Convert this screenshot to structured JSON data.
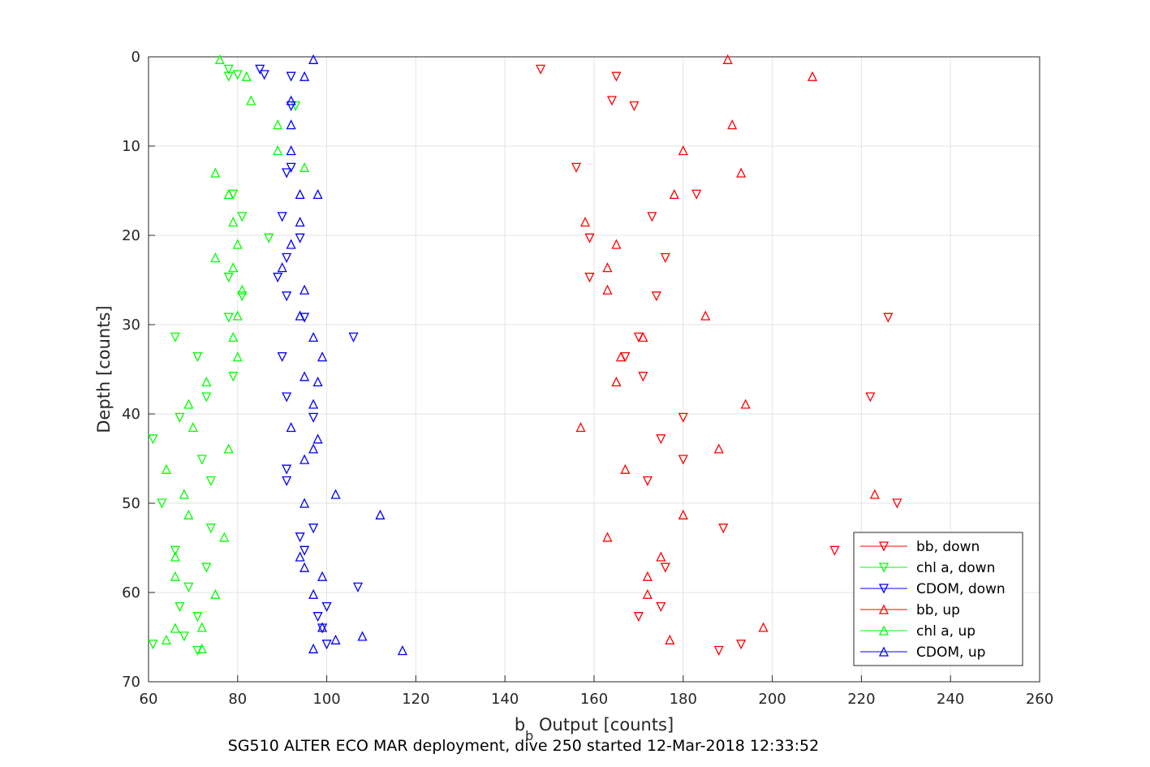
{
  "chart_data": {
    "type": "scatter",
    "xlabel_main": "b",
    "xlabel_sub": "b",
    "xlabel_rest": " Output [counts]",
    "ylabel": "Depth [counts]",
    "caption": "SG510 ALTER ECO MAR deployment, dive 250 started 12-Mar-2018 12:33:52",
    "xlim": [
      60,
      260
    ],
    "ylim": [
      0,
      70
    ],
    "y_reversed": true,
    "x_ticks": [
      "60",
      "80",
      "100",
      "120",
      "140",
      "160",
      "180",
      "200",
      "220",
      "240",
      "260"
    ],
    "y_ticks": [
      "0",
      "10",
      "20",
      "30",
      "40",
      "50",
      "60",
      "70"
    ],
    "grid": true,
    "legend_position": "bottom-right",
    "series": [
      {
        "name": "bb, down",
        "color": "#ff0000",
        "marker": "triangle-down",
        "points": [
          [
            148,
            1.4
          ],
          [
            165,
            2.2
          ],
          [
            164,
            4.9
          ],
          [
            169,
            5.5
          ],
          [
            156,
            12.4
          ],
          [
            183,
            15.4
          ],
          [
            173,
            17.9
          ],
          [
            159,
            20.3
          ],
          [
            176,
            22.5
          ],
          [
            159,
            24.7
          ],
          [
            174,
            26.8
          ],
          [
            226,
            29.2
          ],
          [
            170,
            31.4
          ],
          [
            167,
            33.6
          ],
          [
            171,
            35.8
          ],
          [
            222,
            38.1
          ],
          [
            180,
            40.4
          ],
          [
            175,
            42.8
          ],
          [
            180,
            45.1
          ],
          [
            172,
            47.5
          ],
          [
            228,
            50.0
          ],
          [
            189,
            52.8
          ],
          [
            214,
            55.3
          ],
          [
            176,
            57.2
          ],
          [
            175,
            61.6
          ],
          [
            170,
            62.7
          ],
          [
            188,
            66.5
          ],
          [
            193,
            65.8
          ]
        ]
      },
      {
        "name": "chl a, down",
        "color": "#00ff00",
        "marker": "triangle-down",
        "points": [
          [
            78,
            1.4
          ],
          [
            80,
            2.0
          ],
          [
            78,
            2.2
          ],
          [
            93,
            5.5
          ],
          [
            79,
            15.4
          ],
          [
            81,
            17.9
          ],
          [
            87,
            20.3
          ],
          [
            78,
            24.7
          ],
          [
            81,
            26.8
          ],
          [
            78,
            29.2
          ],
          [
            66,
            31.4
          ],
          [
            71,
            33.6
          ],
          [
            79,
            35.8
          ],
          [
            73,
            38.1
          ],
          [
            67,
            40.4
          ],
          [
            61,
            42.8
          ],
          [
            72,
            45.1
          ],
          [
            74,
            47.5
          ],
          [
            63,
            50.0
          ],
          [
            74,
            52.8
          ],
          [
            66,
            55.3
          ],
          [
            73,
            57.2
          ],
          [
            69,
            59.4
          ],
          [
            67,
            61.6
          ],
          [
            71,
            62.7
          ],
          [
            68,
            64.9
          ],
          [
            61,
            65.8
          ],
          [
            71,
            66.5
          ]
        ]
      },
      {
        "name": "CDOM, down",
        "color": "#0000ff",
        "marker": "triangle-down",
        "points": [
          [
            85,
            1.4
          ],
          [
            86,
            2.0
          ],
          [
            92,
            2.2
          ],
          [
            92,
            5.5
          ],
          [
            92,
            12.4
          ],
          [
            91,
            13.0
          ],
          [
            90,
            17.9
          ],
          [
            94,
            20.3
          ],
          [
            91,
            22.5
          ],
          [
            89,
            24.7
          ],
          [
            91,
            26.8
          ],
          [
            95,
            29.2
          ],
          [
            106,
            31.4
          ],
          [
            90,
            33.6
          ],
          [
            91,
            38.1
          ],
          [
            97,
            40.4
          ],
          [
            91,
            46.2
          ],
          [
            91,
            47.5
          ],
          [
            94,
            53.8
          ],
          [
            97,
            52.8
          ],
          [
            95,
            55.3
          ],
          [
            107,
            59.4
          ],
          [
            100,
            61.6
          ],
          [
            98,
            62.7
          ],
          [
            99,
            64.0
          ],
          [
            100,
            65.8
          ]
        ]
      },
      {
        "name": "bb, up",
        "color": "#ff0000",
        "marker": "triangle-up",
        "points": [
          [
            190,
            0.3
          ],
          [
            209,
            2.2
          ],
          [
            191,
            7.6
          ],
          [
            180,
            10.5
          ],
          [
            193,
            13.0
          ],
          [
            178,
            15.4
          ],
          [
            158,
            18.5
          ],
          [
            165,
            21.0
          ],
          [
            163,
            23.6
          ],
          [
            163,
            26.1
          ],
          [
            185,
            29.0
          ],
          [
            171,
            31.4
          ],
          [
            166,
            33.6
          ],
          [
            165,
            36.4
          ],
          [
            194,
            38.9
          ],
          [
            157,
            41.5
          ],
          [
            188,
            43.9
          ],
          [
            167,
            46.2
          ],
          [
            223,
            49.0
          ],
          [
            180,
            51.3
          ],
          [
            163,
            53.8
          ],
          [
            175,
            56.0
          ],
          [
            172,
            58.2
          ],
          [
            172,
            60.2
          ],
          [
            198,
            63.9
          ],
          [
            177,
            65.3
          ]
        ]
      },
      {
        "name": "chl a, up",
        "color": "#00ff00",
        "marker": "triangle-up",
        "points": [
          [
            76,
            0.3
          ],
          [
            82,
            2.2
          ],
          [
            83,
            4.9
          ],
          [
            89,
            7.6
          ],
          [
            89,
            10.5
          ],
          [
            95,
            12.4
          ],
          [
            75,
            13.0
          ],
          [
            78,
            15.4
          ],
          [
            79,
            18.5
          ],
          [
            80,
            21.0
          ],
          [
            75,
            22.5
          ],
          [
            79,
            23.6
          ],
          [
            81,
            26.1
          ],
          [
            80,
            29.0
          ],
          [
            79,
            31.4
          ],
          [
            80,
            33.6
          ],
          [
            73,
            36.4
          ],
          [
            69,
            38.9
          ],
          [
            70,
            41.5
          ],
          [
            78,
            43.9
          ],
          [
            64,
            46.2
          ],
          [
            68,
            49.0
          ],
          [
            69,
            51.3
          ],
          [
            77,
            53.8
          ],
          [
            66,
            56.0
          ],
          [
            66,
            58.2
          ],
          [
            75,
            60.2
          ],
          [
            72,
            63.9
          ],
          [
            66,
            64.0
          ],
          [
            64,
            65.3
          ],
          [
            72,
            66.3
          ]
        ]
      },
      {
        "name": "CDOM, up",
        "color": "#0000ff",
        "marker": "triangle-up",
        "points": [
          [
            97,
            0.3
          ],
          [
            95,
            2.2
          ],
          [
            92,
            4.9
          ],
          [
            92,
            7.6
          ],
          [
            92,
            10.5
          ],
          [
            94,
            15.4
          ],
          [
            98,
            15.4
          ],
          [
            94,
            18.5
          ],
          [
            92,
            21.0
          ],
          [
            90,
            23.6
          ],
          [
            95,
            26.1
          ],
          [
            94,
            29.0
          ],
          [
            97,
            31.4
          ],
          [
            99,
            33.6
          ],
          [
            95,
            35.8
          ],
          [
            98,
            36.4
          ],
          [
            97,
            38.9
          ],
          [
            92,
            41.5
          ],
          [
            98,
            42.8
          ],
          [
            97,
            43.9
          ],
          [
            95,
            45.1
          ],
          [
            102,
            49.0
          ],
          [
            95,
            50.0
          ],
          [
            112,
            51.3
          ],
          [
            94,
            56.0
          ],
          [
            95,
            57.2
          ],
          [
            99,
            58.2
          ],
          [
            97,
            60.2
          ],
          [
            99,
            63.9
          ],
          [
            108,
            64.9
          ],
          [
            102,
            65.3
          ],
          [
            97,
            66.3
          ],
          [
            117,
            66.5
          ]
        ]
      }
    ]
  }
}
